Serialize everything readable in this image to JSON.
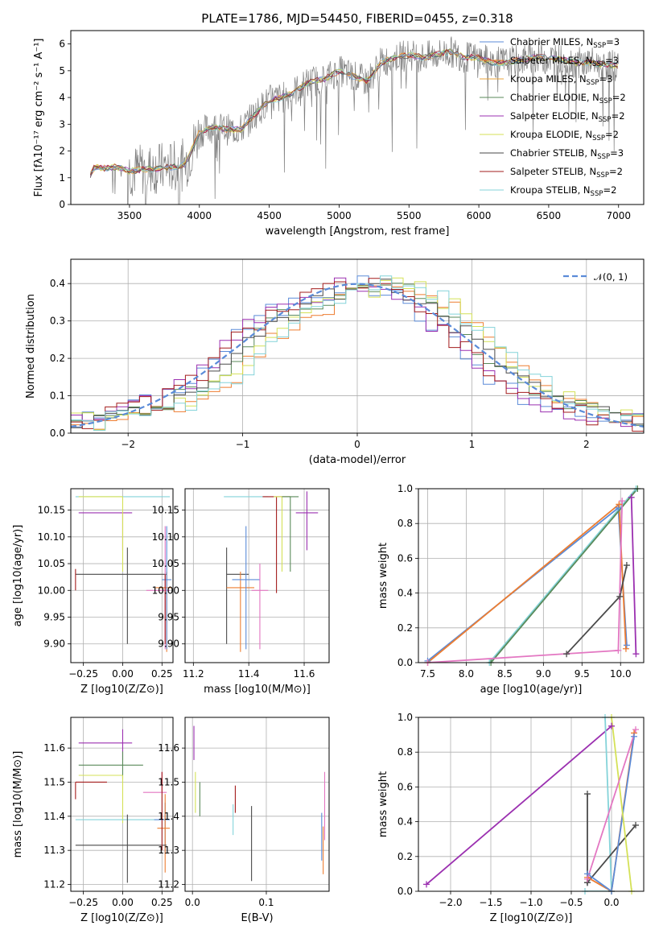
{
  "figure": {
    "title": "PLATE=1786, MJD=54450, FIBERID=0455, z=0.318"
  },
  "palette": {
    "data": "#7f7f7f",
    "normal": "#5b8bd8",
    "chabrier_miles": "#5b8bd8",
    "salpeter_miles": "#ed7d31",
    "kroupa_miles": "#e8a33c",
    "chabrier_elodie": "#5a8a5a",
    "salpeter_elodie": "#9b30b0",
    "kroupa_elodie": "#d4e157",
    "chabrier_stelib": "#4a4a4a",
    "salpeter_stelib": "#a31c1c",
    "kroupa_stelib": "#84d3d9",
    "pink": "#e377c2"
  },
  "chart_data": [
    {
      "id": "spectrum",
      "type": "line",
      "title": "PLATE=1786, MJD=54450, FIBERID=0455, z=0.318",
      "xlabel": "wavelength [Angstrom, rest frame]",
      "ylabel": "Flux [fλ10⁻¹⁷ erg cm⁻² s⁻¹ A⁻¹]",
      "xlim": [
        3080,
        7180
      ],
      "ylim": [
        0,
        6.5
      ],
      "xticks": [
        3500,
        4000,
        4500,
        5000,
        5500,
        6000,
        6500,
        7000
      ],
      "yticks": [
        0,
        1,
        2,
        3,
        4,
        5,
        6
      ],
      "grid": false,
      "legend_position": "top-right",
      "legend": [
        "Chabrier MILES, N_SSP=3",
        "Salpeter MILES, N_SSP=3",
        "Kroupa MILES, N_SSP=3",
        "Chabrier ELODIE, N_SSP=2",
        "Salpeter ELODIE, N_SSP=2",
        "Kroupa ELODIE, N_SSP=2",
        "Chabrier STELIB, N_SSP=3",
        "Salpeter STELIB, N_SSP=2",
        "Kroupa STELIB, N_SSP=2"
      ],
      "model_continuum": {
        "x": [
          3200,
          3250,
          3300,
          3400,
          3500,
          3600,
          3700,
          3800,
          3900,
          4000,
          4100,
          4200,
          4300,
          4400,
          4500,
          4600,
          4700,
          4800,
          4900,
          5000,
          5100,
          5200,
          5300,
          5400,
          5500,
          5600,
          5700,
          5800,
          5900,
          6000,
          6100,
          6200,
          6300,
          6400,
          6500,
          6600,
          6700,
          6800,
          6900,
          7000
        ],
        "y": [
          0.9,
          1.4,
          1.35,
          1.4,
          1.25,
          1.3,
          1.35,
          1.4,
          1.5,
          2.7,
          2.9,
          2.8,
          2.8,
          3.4,
          3.9,
          4.0,
          4.3,
          4.6,
          4.7,
          5.0,
          4.8,
          4.6,
          5.3,
          5.5,
          5.6,
          5.5,
          5.6,
          5.7,
          5.5,
          5.5,
          5.3,
          5.3,
          5.4,
          5.5,
          5.5,
          5.4,
          5.3,
          5.3,
          5.2,
          5.2
        ]
      }
    },
    {
      "id": "residuals",
      "type": "line",
      "xlabel": "(data-model)/error",
      "ylabel": "Normed distribution",
      "xlim": [
        -2.5,
        2.5
      ],
      "ylim": [
        0,
        0.465
      ],
      "xticks": [
        -2,
        -1,
        0,
        1,
        2
      ],
      "yticks": [
        0.0,
        0.1,
        0.2,
        0.3,
        0.4
      ],
      "grid": true,
      "legend_position": "top-right",
      "legend": [
        "𝒩(0, 1)"
      ],
      "bins": {
        "x": [
          -2.5,
          -2.4,
          -2.3,
          -2.2,
          -2.1,
          -2.0,
          -1.9,
          -1.8,
          -1.7,
          -1.6,
          -1.5,
          -1.4,
          -1.3,
          -1.2,
          -1.1,
          -1.0,
          -0.9,
          -0.8,
          -0.7,
          -0.6,
          -0.5,
          -0.4,
          -0.3,
          -0.2,
          -0.1,
          0.0,
          0.1,
          0.2,
          0.3,
          0.4,
          0.5,
          0.6,
          0.7,
          0.8,
          0.9,
          1.0,
          1.1,
          1.2,
          1.3,
          1.4,
          1.5,
          1.6,
          1.7,
          1.8,
          1.9,
          2.0,
          2.1,
          2.2,
          2.3,
          2.4
        ],
        "y": [
          0.03,
          0.035,
          0.035,
          0.04,
          0.05,
          0.06,
          0.07,
          0.08,
          0.085,
          0.1,
          0.12,
          0.14,
          0.16,
          0.19,
          0.22,
          0.25,
          0.28,
          0.3,
          0.32,
          0.33,
          0.34,
          0.36,
          0.37,
          0.38,
          0.39,
          0.4,
          0.4,
          0.39,
          0.38,
          0.37,
          0.35,
          0.33,
          0.3,
          0.28,
          0.25,
          0.22,
          0.19,
          0.16,
          0.14,
          0.12,
          0.1,
          0.09,
          0.08,
          0.07,
          0.06,
          0.05,
          0.045,
          0.04,
          0.035,
          0.03
        ]
      }
    },
    {
      "id": "age_vs_Z",
      "type": "scatter",
      "xlabel": "Z [log10(Z/Z⊙)]",
      "ylabel": "age  [log10(age/yr)]",
      "xlim": [
        -0.33,
        0.32
      ],
      "ylim": [
        9.865,
        10.19
      ],
      "xticks": [
        -0.25,
        0.0,
        0.25
      ],
      "xticklabels": [
        "−0.25",
        "0.00",
        "0.25"
      ],
      "yticks": [
        9.9,
        9.95,
        10.0,
        10.05,
        10.1,
        10.15
      ],
      "grid": true,
      "errorbars": [
        {
          "x": -0.3,
          "y": 10.175,
          "xerr": [
            0.0,
            0.6
          ],
          "yerr": [
            0,
            0
          ],
          "color": "kroupa_stelib"
        },
        {
          "x": 0.0,
          "y": 10.145,
          "xerr": [
            0.28,
            0.06
          ],
          "yerr": [
            0.07,
            0.0
          ],
          "color": "salpeter_elodie"
        },
        {
          "x": 0.0,
          "y": 10.175,
          "xerr": [
            0.28,
            0.0
          ],
          "yerr": [
            0.14,
            0.0
          ],
          "color": "kroupa_elodie"
        },
        {
          "x": 0.03,
          "y": 10.03,
          "xerr": [
            0.33,
            0.25
          ],
          "yerr": [
            0.13,
            0.05
          ],
          "color": "chabrier_stelib"
        },
        {
          "x": 0.27,
          "y": 10.0,
          "xerr": [
            0.12,
            0.03
          ],
          "yerr": [
            0.11,
            0.12
          ],
          "color": "pink"
        },
        {
          "x": 0.28,
          "y": 10.005,
          "xerr": [
            0.07,
            0.03
          ],
          "yerr": [
            0.12,
            0.03
          ],
          "color": "salpeter_miles"
        },
        {
          "x": 0.28,
          "y": 10.02,
          "xerr": [
            0.03,
            0.03
          ],
          "yerr": [
            0.13,
            0.1
          ],
          "color": "chabrier_miles"
        },
        {
          "x": 0.27,
          "y": 10.03,
          "xerr": [
            0.0,
            0.0
          ],
          "yerr": [
            0.13,
            0.0
          ],
          "color": "salpeter_stelib"
        },
        {
          "x": -0.3,
          "y": 10.02,
          "xerr": [
            0.0,
            0.0
          ],
          "yerr": [
            0.02,
            0.02
          ],
          "color": "salpeter_stelib"
        }
      ]
    },
    {
      "id": "age_vs_mass",
      "type": "scatter",
      "xlabel": "mass [log10(M/M⊙)]",
      "xlim": [
        11.17,
        11.69
      ],
      "ylim": [
        9.865,
        10.19
      ],
      "xticks": [
        11.2,
        11.4,
        11.6
      ],
      "yticks": [
        9.9,
        9.95,
        10.0,
        10.05,
        10.1,
        10.15
      ],
      "grid": true,
      "errorbars": [
        {
          "x": 11.32,
          "y": 10.03,
          "xerr": [
            0.0,
            0.08
          ],
          "yerr": [
            0.13,
            0.05
          ],
          "color": "chabrier_stelib"
        },
        {
          "x": 11.37,
          "y": 10.005,
          "xerr": [
            0.05,
            0.05
          ],
          "yerr": [
            0.12,
            0.03
          ],
          "color": "salpeter_miles"
        },
        {
          "x": 11.39,
          "y": 10.02,
          "xerr": [
            0.05,
            0.05
          ],
          "yerr": [
            0.13,
            0.1
          ],
          "color": "chabrier_miles"
        },
        {
          "x": 11.39,
          "y": 10.175,
          "xerr": [
            0.08,
            0.08
          ],
          "yerr": [
            0.0,
            0.0
          ],
          "color": "kroupa_stelib"
        },
        {
          "x": 11.44,
          "y": 10.0,
          "xerr": [
            0.03,
            0.03
          ],
          "yerr": [
            0.11,
            0.05
          ],
          "color": "pink"
        },
        {
          "x": 11.5,
          "y": 10.175,
          "xerr": [
            0.05,
            0.05
          ],
          "yerr": [
            0.18,
            0.0
          ],
          "color": "salpeter_stelib"
        },
        {
          "x": 11.52,
          "y": 10.175,
          "xerr": [
            0.03,
            0.03
          ],
          "yerr": [
            0.14,
            0.0
          ],
          "color": "kroupa_elodie"
        },
        {
          "x": 11.55,
          "y": 10.175,
          "xerr": [
            0.03,
            0.03
          ],
          "yerr": [
            0.14,
            0.0
          ],
          "color": "chabrier_elodie"
        },
        {
          "x": 11.61,
          "y": 10.145,
          "xerr": [
            0.04,
            0.04
          ],
          "yerr": [
            0.07,
            0.04
          ],
          "color": "salpeter_elodie"
        }
      ]
    },
    {
      "id": "weight_vs_age",
      "type": "line",
      "xlabel": "age  [log10(age/yr)]",
      "ylabel": "mass weight",
      "xlim": [
        7.38,
        10.3
      ],
      "ylim": [
        0,
        1.0
      ],
      "xticks": [
        7.5,
        8.0,
        8.5,
        9.0,
        9.5,
        10.0
      ],
      "yticks": [
        0.0,
        0.2,
        0.4,
        0.6,
        0.8,
        1.0
      ],
      "grid": true,
      "series": [
        {
          "color": "chabrier_miles",
          "x": [
            7.5,
            9.97,
            10.08
          ],
          "y": [
            0.01,
            0.89,
            0.1
          ]
        },
        {
          "color": "salpeter_miles",
          "x": [
            7.5,
            9.98,
            10.07
          ],
          "y": [
            0.0,
            0.91,
            0.08
          ]
        },
        {
          "color": "kroupa_stelib",
          "x": [
            8.3,
            10.2
          ],
          "y": [
            0.0,
            1.0
          ]
        },
        {
          "color": "chabrier_elodie",
          "x": [
            8.32,
            10.22
          ],
          "y": [
            0.0,
            1.0
          ]
        },
        {
          "color": "chabrier_stelib",
          "x": [
            9.3,
            9.99,
            10.08
          ],
          "y": [
            0.05,
            0.38,
            0.56
          ]
        },
        {
          "color": "salpeter_elodie",
          "x": [
            10.14,
            10.2
          ],
          "y": [
            0.95,
            0.05
          ]
        },
        {
          "color": "pink",
          "x": [
            7.5,
            9.97,
            10.02
          ],
          "y": [
            0.0,
            0.07,
            0.93
          ]
        }
      ]
    },
    {
      "id": "mass_vs_Z",
      "type": "scatter",
      "xlabel": "Z [log10(Z/Z⊙)]",
      "ylabel": "mass [log10(M/M⊙)]",
      "xlim": [
        -0.33,
        0.32
      ],
      "ylim": [
        11.18,
        11.69
      ],
      "xticks": [
        -0.25,
        0.0,
        0.25
      ],
      "xticklabels": [
        "−0.25",
        "0.00",
        "0.25"
      ],
      "yticks": [
        11.2,
        11.3,
        11.4,
        11.5,
        11.6
      ],
      "grid": true,
      "errorbars": [
        {
          "x": 0.0,
          "y": 11.615,
          "xerr": [
            0.28,
            0.06
          ],
          "yerr": [
            0.05,
            0.04
          ],
          "color": "salpeter_elodie"
        },
        {
          "x": 0.0,
          "y": 11.55,
          "xerr": [
            0.28,
            0.13
          ],
          "yerr": [
            0.04,
            0.04
          ],
          "color": "chabrier_elodie"
        },
        {
          "x": 0.0,
          "y": 11.52,
          "xerr": [
            0.28,
            0.0
          ],
          "yerr": [
            0.14,
            0.0
          ],
          "color": "kroupa_elodie"
        },
        {
          "x": -0.3,
          "y": 11.5,
          "xerr": [
            0.0,
            0.2
          ],
          "yerr": [
            0.05,
            0.0
          ],
          "color": "salpeter_stelib"
        },
        {
          "x": 0.25,
          "y": 11.47,
          "xerr": [
            0.12,
            0.03
          ],
          "yerr": [
            0.0,
            0.06
          ],
          "color": "pink"
        },
        {
          "x": -0.3,
          "y": 11.39,
          "xerr": [
            0.0,
            0.6
          ],
          "yerr": [
            0.0,
            0.0
          ],
          "color": "kroupa_stelib"
        },
        {
          "x": 0.27,
          "y": 11.39,
          "xerr": [
            0.07,
            0.03
          ],
          "yerr": [
            0.1,
            0.05
          ],
          "color": "chabrier_miles"
        },
        {
          "x": 0.27,
          "y": 11.365,
          "xerr": [
            0.05,
            0.03
          ],
          "yerr": [
            0.13,
            0.1
          ],
          "color": "salpeter_miles"
        },
        {
          "x": 0.03,
          "y": 11.315,
          "xerr": [
            0.33,
            0.25
          ],
          "yerr": [
            0.11,
            0.09
          ],
          "color": "chabrier_stelib"
        },
        {
          "x": 0.25,
          "y": 11.5,
          "xerr": [
            0.0,
            0.0
          ],
          "yerr": [
            0.2,
            0.03
          ],
          "color": "salpeter_stelib"
        }
      ]
    },
    {
      "id": "mass_vs_EBV",
      "type": "scatter",
      "xlabel": "E(B-V)",
      "xlim": [
        -0.01,
        0.185
      ],
      "ylim": [
        11.18,
        11.69
      ],
      "xticks": [
        0.0,
        0.1
      ],
      "yticks": [
        11.2,
        11.3,
        11.4,
        11.5,
        11.6
      ],
      "grid": true,
      "errorbars": [
        {
          "x": 0.002,
          "y": 11.615,
          "xerr": [
            0,
            0
          ],
          "yerr": [
            0.05,
            0.05
          ],
          "color": "salpeter_elodie"
        },
        {
          "x": 0.004,
          "y": 11.47,
          "xerr": [
            0,
            0
          ],
          "yerr": [
            0.06,
            0.06
          ],
          "color": "kroupa_elodie"
        },
        {
          "x": 0.01,
          "y": 11.45,
          "xerr": [
            0,
            0
          ],
          "yerr": [
            0.05,
            0.05
          ],
          "color": "chabrier_elodie"
        },
        {
          "x": 0.055,
          "y": 11.385,
          "xerr": [
            0,
            0
          ],
          "yerr": [
            0.04,
            0.05
          ],
          "color": "kroupa_stelib"
        },
        {
          "x": 0.058,
          "y": 11.45,
          "xerr": [
            0,
            0
          ],
          "yerr": [
            0.04,
            0.04
          ],
          "color": "salpeter_stelib"
        },
        {
          "x": 0.08,
          "y": 11.32,
          "xerr": [
            0,
            0
          ],
          "yerr": [
            0.11,
            0.11
          ],
          "color": "chabrier_stelib"
        },
        {
          "x": 0.175,
          "y": 11.34,
          "xerr": [
            0,
            0
          ],
          "yerr": [
            0.07,
            0.07
          ],
          "color": "chabrier_miles"
        },
        {
          "x": 0.177,
          "y": 11.3,
          "xerr": [
            0,
            0
          ],
          "yerr": [
            0.07,
            0.07
          ],
          "color": "salpeter_miles"
        },
        {
          "x": 0.179,
          "y": 11.43,
          "xerr": [
            0,
            0
          ],
          "yerr": [
            0.1,
            0.1
          ],
          "color": "pink"
        }
      ]
    },
    {
      "id": "weight_vs_Z",
      "type": "line",
      "xlabel": "Z [log10(Z/Z⊙)]",
      "ylabel": "mass weight",
      "xlim": [
        -2.4,
        0.4
      ],
      "ylim": [
        0,
        1.0
      ],
      "xticks": [
        -2.0,
        -1.5,
        -1.0,
        -0.5,
        0.0
      ],
      "xticklabels": [
        "−2.0",
        "−1.5",
        "−1.0",
        "−0.5",
        "0.0"
      ],
      "yticks": [
        0.0,
        0.2,
        0.4,
        0.6,
        0.8,
        1.0
      ],
      "grid": true,
      "series": [
        {
          "color": "salpeter_elodie",
          "x": [
            -2.3,
            0.0
          ],
          "y": [
            0.04,
            0.95
          ]
        },
        {
          "color": "kroupa_stelib",
          "x": [
            -0.08,
            0.0,
            -0.33,
            0.0
          ],
          "y": [
            1.0,
            0.0,
            0.0,
            0.0
          ]
        },
        {
          "color": "chabrier_stelib",
          "x": [
            -0.3,
            -0.3,
            -0.3,
            0.3
          ],
          "y": [
            0.56,
            0.05,
            0.05,
            0.38
          ]
        },
        {
          "color": "salpeter_miles",
          "x": [
            -0.3,
            0.0,
            0.28
          ],
          "y": [
            0.08,
            0.0,
            0.91
          ]
        },
        {
          "color": "chabrier_miles",
          "x": [
            -0.3,
            0.0,
            0.28
          ],
          "y": [
            0.1,
            0.0,
            0.89
          ]
        },
        {
          "color": "kroupa_elodie",
          "x": [
            0.0,
            0.25
          ],
          "y": [
            1.0,
            0.0
          ]
        },
        {
          "color": "pink",
          "x": [
            -0.3,
            0.3
          ],
          "y": [
            0.07,
            0.93
          ]
        }
      ]
    }
  ]
}
